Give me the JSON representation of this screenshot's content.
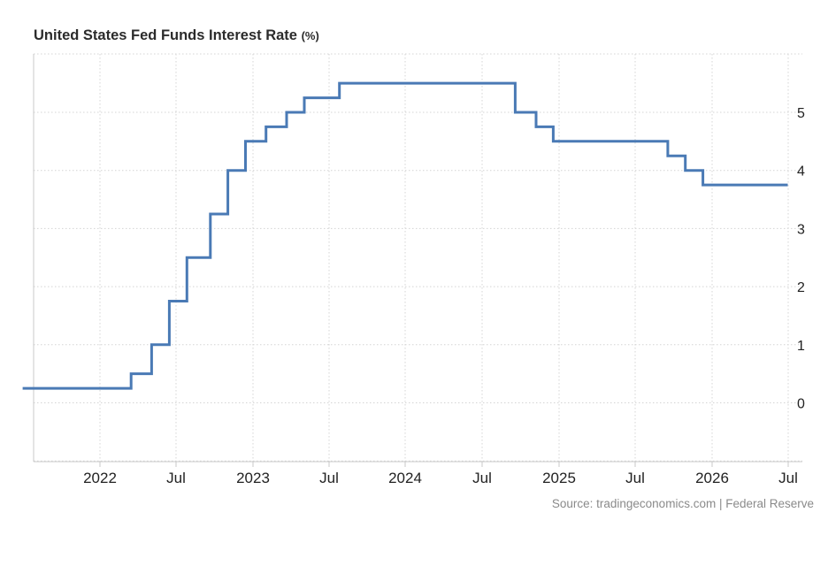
{
  "chart": {
    "title": "United States Fed Funds Interest Rate",
    "unit": "(%)",
    "source": "Source: tradingeconomics.com | Federal Reserve"
  },
  "colors": {
    "line": "#4a7ab5",
    "grid": "#d4d4d4",
    "axis": "#c8c8c8"
  },
  "chart_data": {
    "type": "line",
    "step": true,
    "title": "United States Fed Funds Interest Rate",
    "ylabel": "(%)",
    "xlim": [
      "2021-07-01",
      "2026-07-15"
    ],
    "ylim": [
      -1,
      5.5
    ],
    "yticks": [
      0,
      1,
      2,
      3,
      4,
      5
    ],
    "xticks": [
      {
        "date": "2022-01-01",
        "label": "2022"
      },
      {
        "date": "2022-07-01",
        "label": "Jul"
      },
      {
        "date": "2023-01-01",
        "label": "2023"
      },
      {
        "date": "2023-07-01",
        "label": "Jul"
      },
      {
        "date": "2024-01-01",
        "label": "2024"
      },
      {
        "date": "2024-07-01",
        "label": "Jul"
      },
      {
        "date": "2025-01-01",
        "label": "2025"
      },
      {
        "date": "2025-07-01",
        "label": "Jul"
      },
      {
        "date": "2026-01-01",
        "label": "2026"
      },
      {
        "date": "2026-07-01",
        "label": "Jul"
      }
    ],
    "grid": true,
    "y_axis_side": "right",
    "series": [
      {
        "x": [
          "2021-07-01",
          "2022-03-16",
          "2022-05-04",
          "2022-06-15",
          "2022-07-27",
          "2022-09-21",
          "2022-11-02",
          "2022-12-14",
          "2023-02-01",
          "2023-03-22",
          "2023-05-03",
          "2023-07-26",
          "2024-09-18",
          "2024-11-07",
          "2024-12-18",
          "2025-09-17",
          "2025-10-29",
          "2025-12-10",
          "2026-06-30"
        ],
        "y": [
          0.25,
          0.5,
          1.0,
          1.75,
          2.5,
          3.25,
          4.0,
          4.5,
          4.75,
          5.0,
          5.25,
          5.5,
          5.0,
          4.75,
          4.5,
          4.25,
          4.0,
          3.75,
          3.75
        ]
      }
    ]
  }
}
